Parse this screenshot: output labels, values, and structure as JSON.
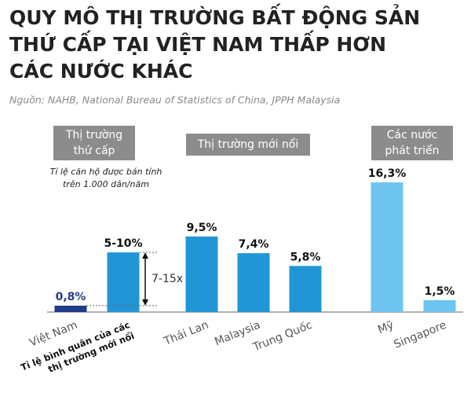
{
  "chart_data": {
    "type": "bar",
    "title_lines": [
      "QUY MÔ THỊ TRƯỜNG BẤT ĐỘNG SẢN",
      "THỨ CẤP TẠI VIỆT NAM THẤP HƠN",
      "CÁC NƯỚC KHÁC"
    ],
    "source": "Nguồn: NAHB, National Bureau of Statistics of China, JPPH Malaysia",
    "note_lines": [
      "Tỉ lệ căn hộ được bán tính",
      "trên 1.000 dân/năm"
    ],
    "groups": [
      {
        "lines": [
          "Thị trường",
          "thứ cấp"
        ]
      },
      {
        "lines": [
          "Thị trường mới nổi"
        ]
      },
      {
        "lines": [
          "Các nước",
          "phát triển"
        ]
      }
    ],
    "annotation": "7-15x",
    "categories": [
      [
        "Việt Nam"
      ],
      [
        "Tỉ lệ bình quân của các",
        "thị trường mới nổi"
      ],
      [
        "Thái Lan"
      ],
      [
        "Malaysia"
      ],
      [
        "Trung Quốc"
      ],
      [
        "Mỹ"
      ],
      [
        "Singapore"
      ]
    ],
    "values": [
      0.8,
      7.5,
      9.5,
      7.4,
      5.8,
      16.3,
      1.5
    ],
    "value_labels": [
      "0,8%",
      "5-10%",
      "9,5%",
      "7,4%",
      "5,8%",
      "16,3%",
      "1,5%"
    ],
    "colors": [
      "#1f3c88",
      "#2196d6",
      "#2196d6",
      "#2196d6",
      "#2196d6",
      "#6cc4ef",
      "#6cc4ef"
    ],
    "ylim": [
      0,
      17
    ]
  }
}
